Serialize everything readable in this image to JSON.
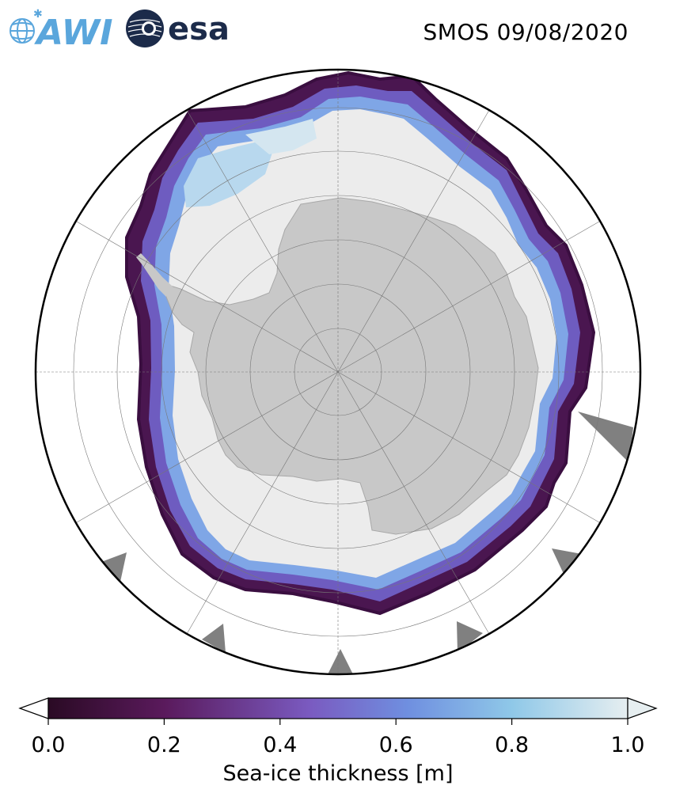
{
  "header": {
    "awi_logo_text": "AWI",
    "esa_logo_text": "esa",
    "title": "SMOS 09/08/2020"
  },
  "map": {
    "projection": "south-polar-stereographic",
    "region": "Antarctica / Southern Ocean",
    "colors": {
      "ocean": "#ffffff",
      "land": "#c8c8c8",
      "thick_ice": "#ececec",
      "land_mask_gray": "#7f7f7f",
      "gridline": "#888888"
    }
  },
  "colorbar": {
    "label": "Sea-ice thickness [m]",
    "ticks": [
      "0.0",
      "0.2",
      "0.4",
      "0.6",
      "0.8",
      "1.0"
    ],
    "range": [
      0.0,
      1.0
    ],
    "extend": "both",
    "colormap_stops": [
      "#2a0a24",
      "#5a1a5c",
      "#7a4aa8",
      "#6f8fe0",
      "#8fc8e8",
      "#e6eef0"
    ]
  }
}
